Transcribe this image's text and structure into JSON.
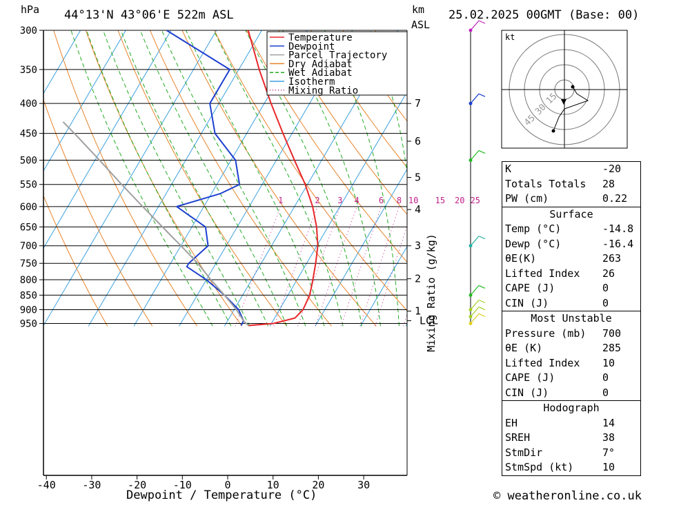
{
  "header": {
    "hpa_label": "hPa",
    "location": "44°13'N 43°06'E 522m ASL",
    "km_label": "km",
    "asl_label": "ASL",
    "datetime": "25.02.2025 00GMT (Base: 00)"
  },
  "footer": {
    "credit": "© weatheronline.co.uk"
  },
  "chart_data": {
    "type": "line",
    "subtype": "skew-T log-P",
    "xlabel": "Dewpoint / Temperature (°C)",
    "ylabel": "hPa",
    "right_axis_label": "Mixing Ratio (g/kg)",
    "xlim": [
      -40,
      35
    ],
    "ylim": [
      300,
      960
    ],
    "x_ticks": [
      -40,
      -30,
      -20,
      -10,
      0,
      10,
      20,
      30
    ],
    "pressure_ticks": [
      300,
      350,
      400,
      450,
      500,
      550,
      600,
      650,
      700,
      750,
      800,
      850,
      900,
      950
    ],
    "km_ticks": [
      {
        "km": "7",
        "p": 400
      },
      {
        "km": "6",
        "p": 464
      },
      {
        "km": "5",
        "p": 535
      },
      {
        "km": "4",
        "p": 607
      },
      {
        "km": "3",
        "p": 700
      },
      {
        "km": "2",
        "p": 797
      },
      {
        "km": "1",
        "p": 905
      },
      {
        "km": "LCL",
        "p": 940
      }
    ],
    "mixing_ratio_labels": [
      "1",
      "2",
      "3",
      "4",
      "6",
      "8",
      "10",
      "15",
      "20",
      "25"
    ],
    "legend": [
      "Temperature",
      "Dewpoint",
      "Parcel Trajectory",
      "Dry Adiabat",
      "Wet Adiabat",
      "Isotherm",
      "Mixing Ratio"
    ],
    "series": [
      {
        "name": "Temperature",
        "color": "#e8262a",
        "points": [
          [
            958,
            -14.8
          ],
          [
            950,
            -9.5
          ],
          [
            930,
            -5.5
          ],
          [
            900,
            -4.8
          ],
          [
            850,
            -5.2
          ],
          [
            800,
            -6.5
          ],
          [
            750,
            -8
          ],
          [
            700,
            -9.8
          ],
          [
            650,
            -12.5
          ],
          [
            600,
            -16
          ],
          [
            550,
            -20.5
          ],
          [
            500,
            -26
          ],
          [
            450,
            -32
          ],
          [
            400,
            -38.5
          ],
          [
            350,
            -45.5
          ],
          [
            300,
            -53
          ]
        ]
      },
      {
        "name": "Dewpoint",
        "color": "#1c3fd0",
        "points": [
          [
            958,
            -16.4
          ],
          [
            940,
            -16.5
          ],
          [
            900,
            -19
          ],
          [
            850,
            -24
          ],
          [
            800,
            -30
          ],
          [
            760,
            -36
          ],
          [
            750,
            -36
          ],
          [
            700,
            -34
          ],
          [
            650,
            -37
          ],
          [
            600,
            -46
          ],
          [
            570,
            -38
          ],
          [
            550,
            -35
          ],
          [
            500,
            -39
          ],
          [
            450,
            -47
          ],
          [
            400,
            -52
          ],
          [
            350,
            -52
          ],
          [
            300,
            -71
          ]
        ]
      },
      {
        "name": "Parcel Trajectory",
        "color": "#a0a0a0",
        "points": [
          [
            958,
            -14.8
          ],
          [
            940,
            -16.5
          ],
          [
            900,
            -19.5
          ],
          [
            850,
            -24
          ],
          [
            800,
            -29
          ],
          [
            750,
            -34
          ],
          [
            700,
            -40
          ],
          [
            650,
            -46.5
          ],
          [
            600,
            -53.5
          ],
          [
            550,
            -61
          ],
          [
            500,
            -69
          ],
          [
            450,
            -78
          ],
          [
            430,
            -82
          ]
        ]
      }
    ],
    "wind_barbs": [
      {
        "p": 300,
        "color": "#c020c0"
      },
      {
        "p": 400,
        "color": "#1c3fd0"
      },
      {
        "p": 500,
        "color": "#22bb22"
      },
      {
        "p": 700,
        "color": "#20b0a0"
      },
      {
        "p": 850,
        "color": "#22bb22"
      },
      {
        "p": 900,
        "color": "#a0d020"
      },
      {
        "p": 925,
        "color": "#a0d020"
      },
      {
        "p": 950,
        "color": "#e0d020"
      }
    ]
  },
  "hodograph": {
    "unit_label": "kt",
    "ring_labels": [
      "15",
      "30",
      "45"
    ]
  },
  "indices": {
    "k_label": "K",
    "k": "-20",
    "tt_label": "Totals Totals",
    "tt": "28",
    "pw_label": "PW (cm)",
    "pw": "0.22"
  },
  "surface": {
    "title": "Surface",
    "temp_label": "Temp (°C)",
    "temp": "-14.8",
    "dewp_label": "Dewp (°C)",
    "dewp": "-16.4",
    "theta_label": "θE(K)",
    "theta": "263",
    "li_label": "Lifted Index",
    "li": "26",
    "cape_label": "CAPE (J)",
    "cape": "0",
    "cin_label": "CIN (J)",
    "cin": "0"
  },
  "most_unstable": {
    "title": "Most Unstable",
    "pressure_label": "Pressure (mb)",
    "pressure": "700",
    "theta_label": "θE (K)",
    "theta": "285",
    "li_label": "Lifted Index",
    "li": "10",
    "cape_label": "CAPE (J)",
    "cape": "0",
    "cin_label": "CIN (J)",
    "cin": "0"
  },
  "hodo_stats": {
    "title": "Hodograph",
    "eh_label": "EH",
    "eh": "14",
    "sreh_label": "SREH",
    "sreh": "38",
    "stmdir_label": "StmDir",
    "stmdir": "7°",
    "stmspd_label": "StmSpd (kt)",
    "stmspd": "10"
  }
}
